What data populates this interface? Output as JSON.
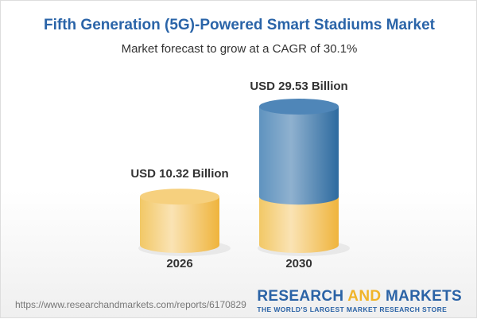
{
  "title": "Fifth Generation (5G)-Powered Smart Stadiums Market",
  "subtitle": "Market forecast to grow at a CAGR of 30.1%",
  "chart_data": {
    "type": "bar",
    "categories": [
      "2026",
      "2030"
    ],
    "values": [
      10.32,
      29.53
    ],
    "data_labels": [
      "USD 10.32 Billion",
      "USD 29.53 Billion"
    ],
    "title": "Fifth Generation (5G)-Powered Smart Stadiums Market",
    "subtitle": "Market forecast to grow at a CAGR of 30.1%",
    "style": "3d-cylinder",
    "colors": {
      "base": "#f2c15a",
      "growth": "#3b74a8"
    },
    "grid": false
  },
  "footer": {
    "url": "https://www.researchandmarkets.com/reports/6170829",
    "logo_part1": "RESEARCH ",
    "logo_part2": "AND",
    "logo_part3": " MARKETS",
    "tagline": "THE WORLD'S LARGEST MARKET RESEARCH STORE"
  }
}
